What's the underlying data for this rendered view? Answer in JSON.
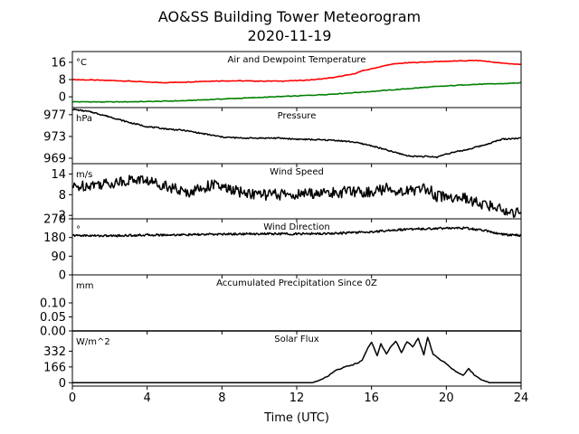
{
  "figure": {
    "title_line1": "AO&SS Building Tower Meteorogram",
    "title_line2": "2020-11-19",
    "xlabel": "Time (UTC)"
  },
  "chart_data": [
    {
      "type": "line",
      "title": "Air and Dewpoint Temperature",
      "unit": "°C",
      "ylim": [
        -5,
        21
      ],
      "yticks": [
        0,
        8,
        16
      ],
      "xlim": [
        0,
        24
      ],
      "xticks": [
        0,
        4,
        8,
        12,
        16,
        20,
        24
      ],
      "series": [
        {
          "color": "#ff0000",
          "x": [
            0,
            1,
            2,
            3,
            4,
            5,
            6,
            7,
            8,
            9,
            10,
            11,
            12,
            13,
            14,
            15,
            15.5,
            16,
            16.5,
            17,
            17.5,
            18,
            19,
            20,
            21,
            21.5,
            22,
            23,
            24
          ],
          "y": [
            8,
            7.8,
            7.6,
            7.3,
            6.8,
            6.6,
            6.8,
            7.2,
            7.4,
            7.4,
            7.3,
            7.3,
            7.5,
            8,
            9,
            10.5,
            12,
            13,
            14,
            15,
            15.5,
            15.8,
            16.2,
            16.5,
            16.7,
            16.9,
            16.6,
            15.6,
            15
          ]
        },
        {
          "color": "#008000",
          "x": [
            0,
            2,
            4,
            6,
            8,
            10,
            12,
            14,
            16,
            18,
            19,
            20,
            21,
            22,
            23,
            24
          ],
          "y": [
            -2.3,
            -2.4,
            -2.2,
            -1.8,
            -1,
            -0.3,
            0.4,
            1.3,
            2.5,
            3.8,
            4.5,
            5,
            5.6,
            5.9,
            6.1,
            6.5
          ]
        }
      ]
    },
    {
      "type": "line",
      "title": "Pressure",
      "unit": "hPa",
      "ylim": [
        968,
        978.3
      ],
      "yticks": [
        969,
        973,
        977
      ],
      "xlim": [
        0,
        24
      ],
      "series": [
        {
          "color": "#000000",
          "x": [
            0,
            1,
            2,
            3,
            4,
            5,
            6,
            7,
            8,
            9,
            10,
            11,
            12,
            13,
            14,
            15,
            16,
            17,
            18,
            19,
            19.5,
            20,
            21,
            22,
            23,
            24
          ],
          "y": [
            978,
            977.5,
            976.6,
            975.6,
            974.8,
            974.4,
            974.1,
            973.5,
            972.9,
            972.7,
            972.7,
            972.7,
            972.5,
            972.4,
            972.3,
            972,
            971.3,
            970.3,
            969.4,
            969.3,
            969.2,
            969.8,
            970.5,
            971.4,
            972.5,
            972.7
          ]
        }
      ]
    },
    {
      "type": "line",
      "title": "Wind Speed",
      "unit": "m/s",
      "ylim": [
        1,
        17
      ],
      "yticks": [
        2,
        8,
        14
      ],
      "xlim": [
        0,
        24
      ],
      "series": [
        {
          "color": "#000000",
          "x": [
            0,
            1,
            2,
            3,
            3.5,
            4,
            4.5,
            5,
            6,
            7,
            7.5,
            8,
            9,
            10,
            11,
            12,
            13,
            14,
            15,
            16,
            17,
            17.5,
            18,
            19,
            19.5,
            20,
            21,
            22,
            23,
            23.5,
            24
          ],
          "y": [
            10,
            11,
            11.3,
            12.2,
            12.5,
            12,
            11.3,
            10.8,
            8.5,
            10,
            11,
            10,
            8.7,
            8,
            8,
            8,
            8.5,
            8.5,
            9,
            8.7,
            10,
            9,
            9,
            10,
            7.5,
            7.5,
            6.8,
            5,
            4,
            2.5,
            4
          ]
        }
      ]
    },
    {
      "type": "line",
      "title": "Wind Direction",
      "unit": "°",
      "ylim": [
        0,
        270
      ],
      "yticks": [
        0,
        90,
        180,
        270
      ],
      "xlim": [
        0,
        24
      ],
      "series": [
        {
          "color": "#000000",
          "x": [
            0,
            2,
            4,
            6,
            8,
            10,
            12,
            14,
            16,
            17,
            18,
            20,
            21,
            22,
            23,
            24
          ],
          "y": [
            190,
            188,
            192,
            193,
            196,
            198,
            197,
            200,
            207,
            215,
            220,
            225,
            225,
            215,
            195,
            190
          ]
        }
      ]
    },
    {
      "type": "line",
      "title": "Accumulated Precipitation Since 0Z",
      "unit": "mm",
      "ylim": [
        0,
        0.2
      ],
      "yticks": [
        0.0,
        0.05,
        0.1
      ],
      "ytick_labels": [
        "0.00",
        "0.05",
        "0.10"
      ],
      "xlim": [
        0,
        24
      ],
      "series": [
        {
          "color": "#000000",
          "x": [
            0,
            24
          ],
          "y": [
            0,
            0
          ]
        }
      ]
    },
    {
      "type": "line",
      "title": "Solar Flux",
      "unit": "W/m^2",
      "ylim": [
        -35,
        545
      ],
      "yticks": [
        0,
        166,
        332
      ],
      "xlim": [
        0,
        24
      ],
      "series": [
        {
          "color": "#000000",
          "x": [
            0,
            12.8,
            13.2,
            13.6,
            14,
            14.5,
            15,
            15.5,
            15.8,
            16,
            16.3,
            16.5,
            16.8,
            17,
            17.3,
            17.6,
            17.9,
            18.2,
            18.5,
            18.8,
            19,
            19.3,
            19.6,
            20,
            20.3,
            20.6,
            20.9,
            21.2,
            21.5,
            21.7,
            22,
            22.3,
            22.7,
            23,
            24
          ],
          "y": [
            0,
            0,
            25,
            60,
            120,
            160,
            190,
            230,
            370,
            430,
            290,
            410,
            300,
            370,
            440,
            320,
            430,
            380,
            470,
            290,
            480,
            300,
            250,
            200,
            150,
            110,
            80,
            150,
            80,
            60,
            20,
            0,
            0,
            0,
            0
          ]
        }
      ]
    }
  ]
}
